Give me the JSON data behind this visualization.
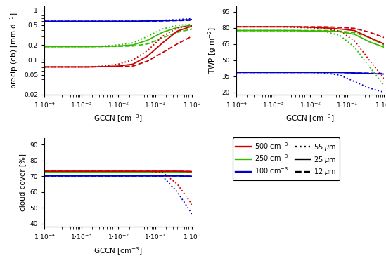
{
  "x_range": [
    0.0001,
    1.0
  ],
  "colors": {
    "red": "#cc0000",
    "green": "#33bb00",
    "blue": "#0000cc"
  },
  "precip": {
    "ylabel": "precip (cb) [mm d$^{-1}$]",
    "ylim": [
      0.02,
      1.2
    ],
    "yticks": [
      0.02,
      0.05,
      0.1,
      0.2,
      0.5,
      1.0
    ],
    "red_solid": [
      0.072,
      0.072,
      0.072,
      0.072,
      0.073,
      0.075,
      0.082,
      0.12,
      0.22,
      0.38,
      0.48
    ],
    "red_dotted": [
      0.072,
      0.072,
      0.072,
      0.072,
      0.075,
      0.082,
      0.1,
      0.155,
      0.3,
      0.44,
      0.5
    ],
    "red_dashed": [
      0.072,
      0.072,
      0.072,
      0.072,
      0.073,
      0.073,
      0.075,
      0.095,
      0.14,
      0.21,
      0.3
    ],
    "green_solid": [
      0.185,
      0.185,
      0.185,
      0.185,
      0.187,
      0.19,
      0.2,
      0.25,
      0.36,
      0.45,
      0.5
    ],
    "green_dotted": [
      0.185,
      0.185,
      0.185,
      0.185,
      0.19,
      0.2,
      0.22,
      0.3,
      0.42,
      0.5,
      0.52
    ],
    "green_dashed": [
      0.185,
      0.185,
      0.185,
      0.185,
      0.185,
      0.187,
      0.19,
      0.21,
      0.28,
      0.36,
      0.42
    ],
    "blue_solid": [
      0.6,
      0.6,
      0.6,
      0.6,
      0.6,
      0.6,
      0.6,
      0.61,
      0.62,
      0.63,
      0.65
    ],
    "blue_dotted": [
      0.6,
      0.6,
      0.6,
      0.6,
      0.6,
      0.6,
      0.61,
      0.62,
      0.63,
      0.65,
      0.68
    ],
    "blue_dashed": [
      0.6,
      0.6,
      0.6,
      0.6,
      0.6,
      0.6,
      0.6,
      0.6,
      0.61,
      0.62,
      0.63
    ]
  },
  "twp": {
    "ylabel": "TWP [g m$^{-2}$]",
    "ylim": [
      18,
      100
    ],
    "yticks": [
      20,
      35,
      50,
      65,
      80,
      95
    ],
    "red_solid": [
      81.0,
      81.0,
      81.0,
      81.0,
      81.0,
      80.5,
      80.0,
      79.0,
      77.5,
      71.0,
      65.0
    ],
    "red_dotted": [
      81.0,
      81.0,
      81.0,
      81.0,
      80.5,
      80.0,
      79.5,
      77.0,
      68.0,
      50.0,
      33.0
    ],
    "red_dashed": [
      81.0,
      81.0,
      81.0,
      81.0,
      81.0,
      81.0,
      81.0,
      80.5,
      79.5,
      76.0,
      71.0
    ],
    "green_solid": [
      77.5,
      77.5,
      77.5,
      77.5,
      77.5,
      77.0,
      77.0,
      76.5,
      74.0,
      67.0,
      62.0
    ],
    "green_dotted": [
      77.5,
      77.5,
      77.5,
      77.5,
      77.0,
      77.0,
      76.5,
      73.0,
      62.0,
      44.0,
      26.0
    ],
    "green_dashed": [
      77.5,
      77.5,
      77.5,
      77.5,
      77.5,
      77.5,
      77.5,
      77.0,
      75.5,
      71.0,
      64.0
    ],
    "blue_solid": [
      38.5,
      38.5,
      38.5,
      38.5,
      38.5,
      38.5,
      38.5,
      38.5,
      38.0,
      37.5,
      37.0
    ],
    "blue_dotted": [
      38.5,
      38.5,
      38.5,
      38.5,
      38.5,
      38.5,
      38.0,
      36.0,
      30.0,
      24.0,
      20.0
    ],
    "blue_dashed": [
      38.5,
      38.5,
      38.5,
      38.5,
      38.5,
      38.5,
      38.5,
      38.5,
      38.0,
      37.8,
      37.5
    ]
  },
  "cloud": {
    "ylabel": "cloud cover [%]",
    "ylim": [
      38,
      94
    ],
    "yticks": [
      40,
      50,
      60,
      70,
      80,
      90
    ],
    "red_solid": [
      73.2,
      73.2,
      73.2,
      73.2,
      73.2,
      73.2,
      73.2,
      73.2,
      73.2,
      73.2,
      73.0
    ],
    "red_dotted": [
      73.2,
      73.2,
      73.2,
      73.2,
      73.2,
      73.2,
      73.2,
      73.2,
      72.5,
      65.0,
      52.0
    ],
    "red_dashed": [
      73.2,
      73.2,
      73.2,
      73.2,
      73.2,
      73.2,
      73.2,
      73.2,
      73.2,
      73.2,
      73.0
    ],
    "green_solid": [
      72.5,
      72.5,
      72.5,
      72.5,
      72.5,
      72.5,
      72.5,
      72.5,
      72.5,
      72.5,
      72.3
    ],
    "green_dotted": [
      72.5,
      72.5,
      72.5,
      72.5,
      72.5,
      72.5,
      72.5,
      72.5,
      72.5,
      72.5,
      72.3
    ],
    "green_dashed": [
      72.5,
      72.5,
      72.5,
      72.5,
      72.5,
      72.5,
      72.5,
      72.5,
      72.5,
      72.5,
      72.3
    ],
    "blue_solid": [
      70.2,
      70.2,
      70.2,
      70.2,
      70.2,
      70.2,
      70.2,
      70.2,
      70.2,
      70.2,
      70.0
    ],
    "blue_dotted": [
      70.2,
      70.2,
      70.2,
      70.2,
      70.2,
      70.2,
      70.2,
      70.2,
      70.0,
      60.0,
      46.0
    ],
    "blue_dashed": [
      70.2,
      70.2,
      70.2,
      70.2,
      70.2,
      70.2,
      70.2,
      70.2,
      70.2,
      70.2,
      70.0
    ]
  },
  "lw": 1.3,
  "fontsize_label": 7.5,
  "fontsize_tick": 6.5,
  "fontsize_legend": 7.0
}
